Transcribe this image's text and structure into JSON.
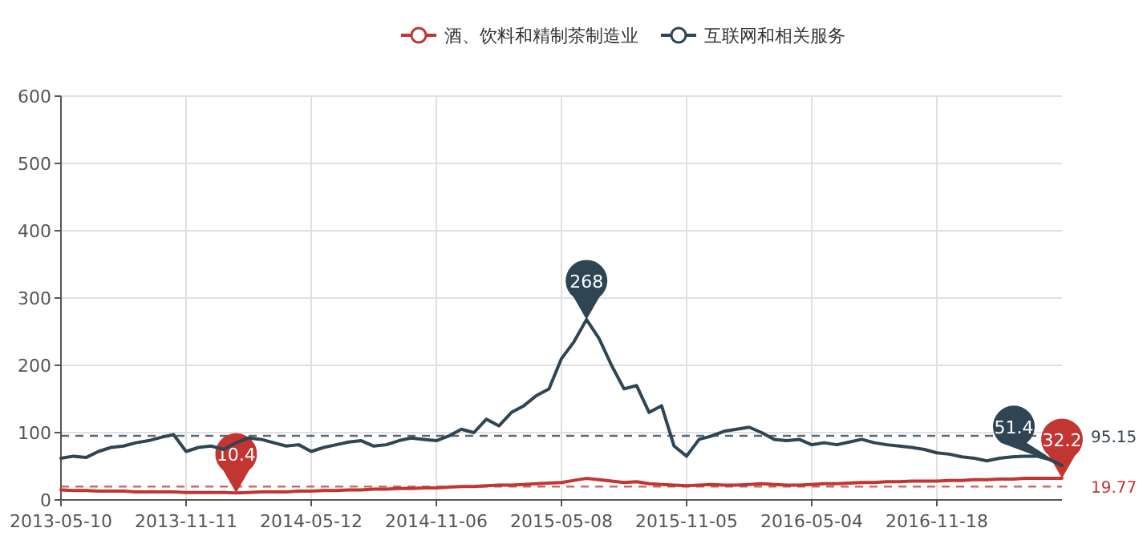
{
  "chart_data": {
    "type": "line",
    "categories": [
      "2013-05-10",
      null,
      null,
      null,
      null,
      null,
      null,
      null,
      null,
      null,
      "2013-11-11",
      null,
      null,
      null,
      null,
      null,
      null,
      null,
      null,
      null,
      "2014-05-12",
      null,
      null,
      null,
      null,
      null,
      null,
      null,
      null,
      null,
      "2014-11-06",
      null,
      null,
      null,
      null,
      null,
      null,
      null,
      null,
      null,
      "2015-05-08",
      null,
      null,
      null,
      null,
      null,
      null,
      null,
      null,
      null,
      "2015-11-05",
      null,
      null,
      null,
      null,
      null,
      null,
      null,
      null,
      null,
      "2016-05-04",
      null,
      null,
      null,
      null,
      null,
      null,
      null,
      null,
      null,
      "2016-11-18",
      null,
      null,
      null,
      null,
      null,
      null,
      null,
      null,
      null,
      null
    ],
    "series": [
      {
        "name": "酒、饮料和精制茶制造业",
        "color": "#c23531",
        "values": [
          15,
          14,
          14,
          13,
          13,
          13,
          12,
          12,
          12,
          12,
          11,
          11,
          11,
          11,
          10.4,
          11,
          12,
          12,
          12,
          13,
          13,
          14,
          14,
          15,
          15,
          16,
          16,
          17,
          17,
          18,
          18,
          19,
          20,
          20,
          21,
          22,
          22,
          23,
          24,
          25,
          26,
          29,
          32,
          30,
          28,
          26,
          27,
          24,
          23,
          22,
          21,
          22,
          23,
          22,
          22,
          23,
          24,
          23,
          22,
          22,
          23,
          24,
          24,
          25,
          26,
          26,
          27,
          27,
          28,
          28,
          28,
          29,
          29,
          30,
          30,
          31,
          31,
          32,
          32,
          32,
          32.2
        ]
      },
      {
        "name": "互联网和相关服务",
        "color": "#2f4554",
        "values": [
          62,
          65,
          63,
          72,
          78,
          80,
          85,
          88,
          93,
          97,
          72,
          78,
          80,
          75,
          85,
          92,
          90,
          85,
          80,
          82,
          72,
          78,
          82,
          86,
          88,
          80,
          82,
          88,
          92,
          90,
          88,
          95,
          105,
          100,
          120,
          110,
          130,
          140,
          155,
          165,
          210,
          235,
          268,
          240,
          200,
          165,
          170,
          130,
          140,
          80,
          65,
          90,
          95,
          102,
          105,
          108,
          100,
          90,
          88,
          90,
          82,
          85,
          82,
          86,
          90,
          85,
          82,
          80,
          78,
          75,
          70,
          68,
          64,
          62,
          58,
          62,
          64,
          65,
          65,
          60,
          51.4
        ]
      }
    ],
    "ylim": [
      0,
      600
    ],
    "yticks": [
      0,
      100,
      200,
      300,
      400,
      500,
      600
    ],
    "grid": true,
    "legend": "top",
    "ref_lines": [
      {
        "axis": "y",
        "value": 95.15,
        "label": "95.15",
        "color": "#2f4554",
        "line_style": "dashed"
      },
      {
        "axis": "y",
        "value": 19.77,
        "label": "19.77",
        "color": "#c23531",
        "line_style": "dashed"
      }
    ],
    "annotations": [
      {
        "text": "268",
        "y": 268
      },
      {
        "text": "10.4",
        "y": 10.4
      },
      {
        "text": "32.2",
        "y": 32.2
      },
      {
        "text": "51.4",
        "y": 51.4
      }
    ]
  }
}
